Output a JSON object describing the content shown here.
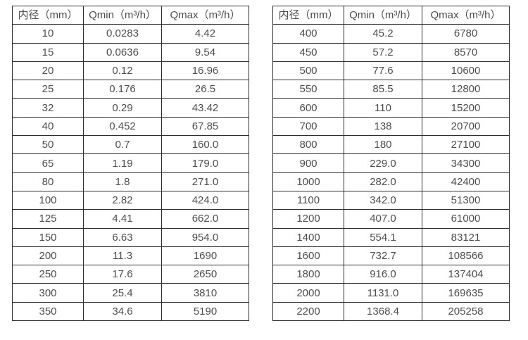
{
  "colors": {
    "text": "#4d4d4d",
    "border": "#2e2e2e",
    "background": "#ffffff"
  },
  "tables": [
    {
      "name": "flow-rate-table-small-diameters",
      "headers": [
        "内径（mm）",
        "Qmin（m³/h）",
        "Qmax（m³/h）"
      ],
      "rows": [
        [
          "10",
          "0.0283",
          "4.42"
        ],
        [
          "15",
          "0.0636",
          "9.54"
        ],
        [
          "20",
          "0.12",
          "16.96"
        ],
        [
          "25",
          "0.176",
          "26.5"
        ],
        [
          "32",
          "0.29",
          "43.42"
        ],
        [
          "40",
          "0.452",
          "67.85"
        ],
        [
          "50",
          "0.7",
          "160.0"
        ],
        [
          "65",
          "1.19",
          "179.0"
        ],
        [
          "80",
          "1.8",
          "271.0"
        ],
        [
          "100",
          "2.82",
          "424.0"
        ],
        [
          "125",
          "4.41",
          "662.0"
        ],
        [
          "150",
          "6.63",
          "954.0"
        ],
        [
          "200",
          "11.3",
          "1690"
        ],
        [
          "250",
          "17.6",
          "2650"
        ],
        [
          "300",
          "25.4",
          "3810"
        ],
        [
          "350",
          "34.6",
          "5190"
        ]
      ]
    },
    {
      "name": "flow-rate-table-large-diameters",
      "headers": [
        "内径（mm）",
        "Qmin（m³/h）",
        "Qmax（m³/h）"
      ],
      "rows": [
        [
          "400",
          "45.2",
          "6780"
        ],
        [
          "450",
          "57.2",
          "8570"
        ],
        [
          "500",
          "77.6",
          "10600"
        ],
        [
          "550",
          "85.5",
          "12800"
        ],
        [
          "600",
          "110",
          "15200"
        ],
        [
          "700",
          "138",
          "20700"
        ],
        [
          "800",
          "180",
          "27100"
        ],
        [
          "900",
          "229.0",
          "34300"
        ],
        [
          "1000",
          "282.0",
          "42400"
        ],
        [
          "1100",
          "342.0",
          "51300"
        ],
        [
          "1200",
          "407.0",
          "61000"
        ],
        [
          "1400",
          "554.1",
          "83121"
        ],
        [
          "1600",
          "732.7",
          "108566"
        ],
        [
          "1800",
          "916.0",
          "137404"
        ],
        [
          "2000",
          "1131.0",
          "169635"
        ],
        [
          "2200",
          "1368.4",
          "205258"
        ]
      ]
    }
  ]
}
